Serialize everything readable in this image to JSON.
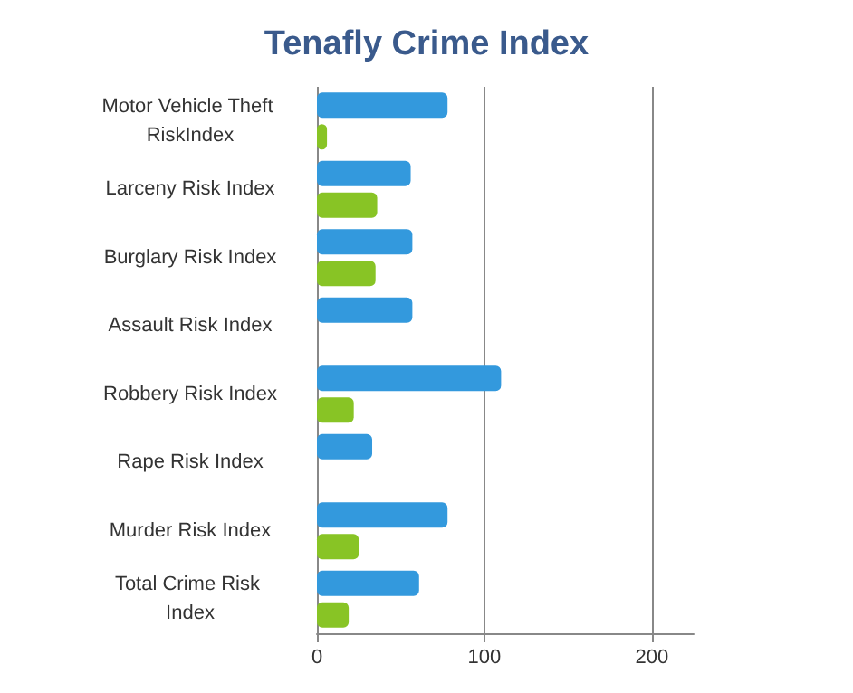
{
  "chart_data": {
    "type": "bar",
    "orientation": "horizontal",
    "title": "Tenafly Crime Index",
    "categories": [
      "Motor Vehicle Theft RiskIndex",
      "Larceny Risk Index",
      "Burglary Risk Index",
      "Assault Risk Index",
      "Robbery Risk Index",
      "Rape Risk Index",
      "Murder Risk Index",
      "Total Crime Risk Index"
    ],
    "series": [
      {
        "color": "#3399dd",
        "values": [
          78,
          56,
          57,
          57,
          110,
          33,
          78,
          61
        ]
      },
      {
        "color": "#88c425",
        "values": [
          6,
          36,
          35,
          null,
          22,
          null,
          25,
          19
        ]
      }
    ],
    "xlim": [
      0,
      225
    ],
    "xticks": [
      0,
      100,
      200
    ],
    "grid": "x"
  }
}
